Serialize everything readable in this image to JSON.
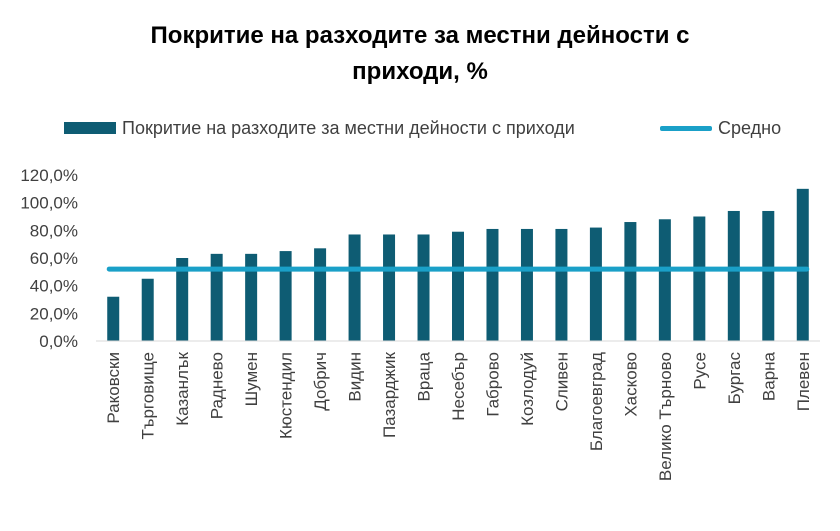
{
  "chart_data": {
    "type": "bar",
    "title_line1": "Покритие на разходите за местни дейности с",
    "title_line2": "приходи, %",
    "categories": [
      "Раковски",
      "Търговище",
      "Казанлък",
      "Раднево",
      "Шумен",
      "Кюстендил",
      "Добрич",
      "Видин",
      "Пазарджик",
      "Враца",
      "Несебър",
      "Габрово",
      "Козлодуй",
      "Сливен",
      "Благоевград",
      "Хасково",
      "Велико Търново",
      "Русе",
      "Бургас",
      "Варна",
      "Плевен"
    ],
    "series": [
      {
        "name": "Покритие на разходите за местни дейности с приходи",
        "type": "bar",
        "color": "#0e5c73",
        "values": [
          32,
          45,
          60,
          63,
          63,
          65,
          67,
          77,
          77,
          77,
          79,
          81,
          81,
          81,
          82,
          86,
          88,
          90,
          94,
          94,
          110
        ]
      },
      {
        "name": "Средно",
        "type": "line",
        "color": "#1aa0c8",
        "value": 52
      }
    ],
    "y_ticks": [
      "0,0%",
      "20,0%",
      "40,0%",
      "60,0%",
      "80,0%",
      "100,0%",
      "120,0%"
    ],
    "ylim": [
      0,
      120
    ],
    "grid": false,
    "legend_position": "top"
  }
}
